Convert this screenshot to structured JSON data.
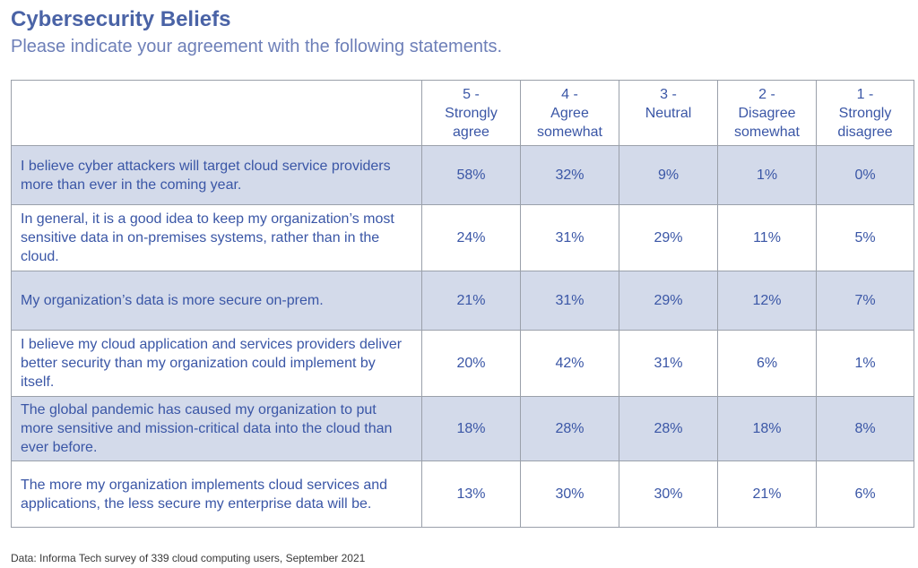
{
  "title": "Cybersecurity Beliefs",
  "subtitle": "Please indicate your agreement with the following statements.",
  "source": "Data: Informa Tech survey of 339 cloud computing users, September 2021",
  "colors": {
    "title": "#4a63a6",
    "text": "#3a56a6",
    "shaded_row": "#d3daea",
    "border": "#9aa0aa"
  },
  "columns": [
    [
      "5 -",
      "Strongly",
      "agree"
    ],
    [
      "4 -",
      "Agree",
      "somewhat"
    ],
    [
      "3 -",
      "Neutral"
    ],
    [
      "2 -",
      "Disagree",
      "somewhat"
    ],
    [
      "1 -",
      "Strongly",
      "disagree"
    ]
  ],
  "chart_data": {
    "type": "table",
    "title": "Cybersecurity Beliefs",
    "subtitle": "Please indicate your agreement with the following statements.",
    "columns": [
      "5 - Strongly agree",
      "4 - Agree somewhat",
      "3 - Neutral",
      "2 - Disagree somewhat",
      "1 - Strongly disagree"
    ],
    "rows": [
      {
        "statement": "I believe cyber attackers will target cloud service providers more than ever in the coming year.",
        "values": [
          "58%",
          "32%",
          "9%",
          "1%",
          "0%"
        ]
      },
      {
        "statement": "In general, it is a good idea to keep my organization’s most sensitive data in on-premises systems, rather than in the cloud.",
        "values": [
          "24%",
          "31%",
          "29%",
          "11%",
          "5%"
        ]
      },
      {
        "statement": "My organization’s data is more secure on-prem.",
        "values": [
          "21%",
          "31%",
          "29%",
          "12%",
          "7%"
        ]
      },
      {
        "statement": "I believe my cloud application and services providers deliver better security than my organization could implement by itself.",
        "values": [
          "20%",
          "42%",
          "31%",
          "6%",
          "1%"
        ]
      },
      {
        "statement": "The global pandemic has caused my organization to put more sensitive and mission-critical data into the cloud than ever before.",
        "values": [
          "18%",
          "28%",
          "28%",
          "18%",
          "8%"
        ]
      },
      {
        "statement": "The more my organization implements cloud services and applications, the less secure my enterprise data will be.",
        "values": [
          "13%",
          "30%",
          "30%",
          "21%",
          "6%"
        ]
      }
    ]
  }
}
